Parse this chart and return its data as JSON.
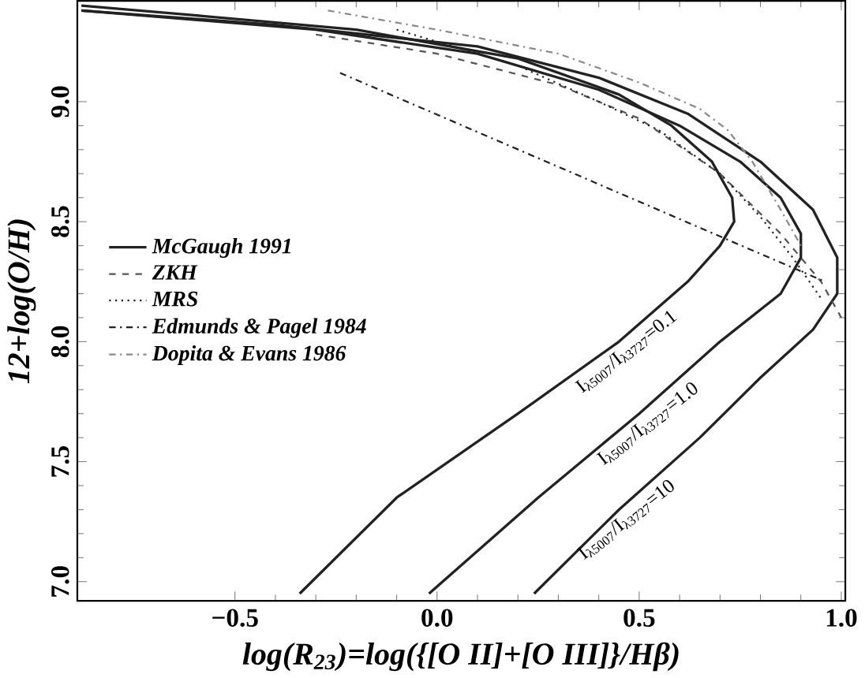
{
  "chart_data": {
    "type": "line",
    "xlabel": "log(R$_{23}$)=log({[O II]+[O III]}/Hβ)",
    "ylabel": "12+log(O/H)",
    "xlim": [
      -0.89,
      1.01
    ],
    "ylim": [
      6.92,
      9.42
    ],
    "xticks": [
      {
        "value": -0.5,
        "label": "−0.5"
      },
      {
        "value": 0.0,
        "label": "0.0"
      },
      {
        "value": 0.5,
        "label": "0.5"
      },
      {
        "value": 1.0,
        "label": "1.0"
      }
    ],
    "yticks": [
      {
        "value": 7.0,
        "label": "7.0"
      },
      {
        "value": 7.5,
        "label": "7.5"
      },
      {
        "value": 8.0,
        "label": "8.0"
      },
      {
        "value": 8.5,
        "label": "8.5"
      },
      {
        "value": 9.0,
        "label": "9.0"
      }
    ],
    "legend": "left",
    "grid": false,
    "marker": "none",
    "series": [
      {
        "name": "*McGaugh* 1991",
        "color": "#222222",
        "line_style": "solid",
        "x": [
          -0.34,
          -0.1,
          0.2,
          0.45,
          0.62,
          0.7,
          0.735,
          0.73,
          0.68,
          0.58,
          0.45,
          0.2,
          -0.2,
          -0.6,
          -0.88
        ],
        "values": [
          6.95,
          7.35,
          7.7,
          8.0,
          8.25,
          8.4,
          8.5,
          8.6,
          8.75,
          8.9,
          9.03,
          9.18,
          9.3,
          9.36,
          9.4
        ]
      },
      {
        "color": "#222222",
        "line_style": "solid",
        "x": [
          -0.02,
          0.25,
          0.5,
          0.7,
          0.85,
          0.9,
          0.9,
          0.85,
          0.75,
          0.6,
          0.4,
          0.1,
          -0.3,
          -0.88
        ],
        "values": [
          6.95,
          7.35,
          7.7,
          8.0,
          8.2,
          8.35,
          8.45,
          8.6,
          8.75,
          8.9,
          9.05,
          9.2,
          9.3,
          9.38
        ]
      },
      {
        "color": "#222222",
        "line_style": "solid",
        "x": [
          0.24,
          0.45,
          0.65,
          0.8,
          0.93,
          0.99,
          0.99,
          0.93,
          0.8,
          0.62,
          0.4,
          0.1,
          -0.4,
          -0.88
        ],
        "values": [
          6.95,
          7.3,
          7.6,
          7.85,
          8.05,
          8.2,
          8.35,
          8.55,
          8.75,
          8.95,
          9.1,
          9.23,
          9.32,
          9.38
        ]
      },
      {
        "name": "*ZKH*",
        "color": "#555555",
        "line_style": "dashed",
        "x": [
          -0.3,
          0.0,
          0.3,
          0.5,
          0.7,
          0.85,
          0.95,
          1.0
        ],
        "values": [
          9.28,
          9.2,
          9.07,
          8.93,
          8.7,
          8.45,
          8.25,
          8.1
        ]
      },
      {
        "name": "*MRS*",
        "color": "#222222",
        "line_style": "dotted",
        "x": [
          -0.1,
          0.2,
          0.4,
          0.55,
          0.7,
          0.8,
          0.88,
          0.95
        ],
        "values": [
          9.3,
          9.15,
          9.0,
          8.88,
          8.7,
          8.52,
          8.35,
          8.18
        ]
      },
      {
        "name": "*Edmunds & Pagel* 1984",
        "color": "#222222",
        "line_style": "dashdot",
        "x": [
          -0.24,
          0.96
        ],
        "values": [
          9.12,
          8.25
        ]
      },
      {
        "name": "*Dopita & Evans* 1986",
        "color": "#888888",
        "line_style": "dashdot",
        "x": [
          -0.27,
          0.0,
          0.3,
          0.5,
          0.65,
          0.72,
          0.78,
          0.85,
          0.9
        ],
        "values": [
          9.38,
          9.3,
          9.2,
          9.08,
          8.97,
          8.88,
          8.75,
          8.55,
          8.4
        ]
      }
    ],
    "annotations": [
      "I$_{λ5007}$/I$_{λ3727}$=0.1",
      "I$_{λ5007}$/I$_{λ3727}$=1.0",
      "I$_{λ5007}$/I$_{λ3727}$=10"
    ]
  }
}
